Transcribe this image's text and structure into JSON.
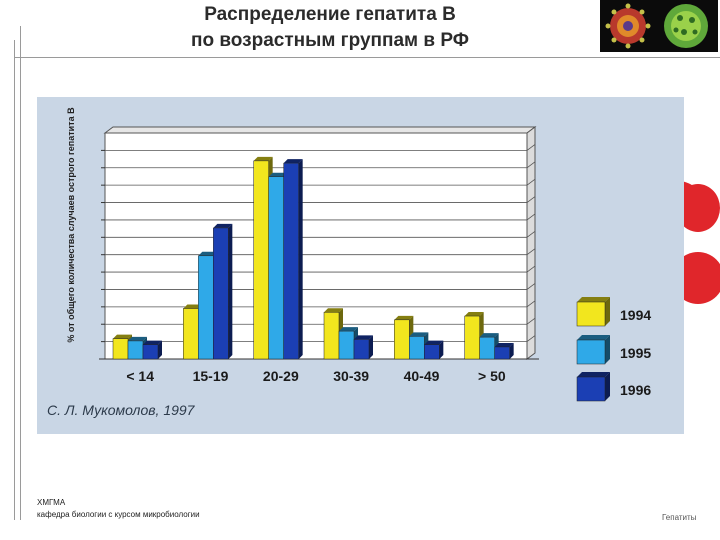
{
  "slide": {
    "title_line1": "Распределение гепатита В",
    "title_line2": "по возрастным группам в РФ",
    "logo_icon": "virus-icon",
    "footer_org": "ХМГМА",
    "footer_dept": "кафедра биологии с курсом микробиологии",
    "footer_topic": "Гепатиты",
    "credit": "С. Л. Мукомолов, 1997"
  },
  "colors": {
    "1994": "#f2e61e",
    "1995": "#2fa9e8",
    "1996": "#1b3fb4",
    "figure_bg": "#c9d6e5",
    "blood_cells": "#e0262b"
  },
  "chart_data": {
    "type": "bar",
    "ylabel": "% от общего количества случаев острого гепатита В",
    "xlabel": "",
    "categories": [
      "< 14",
      "15-19",
      "20-29",
      "30-39",
      "40-49",
      "> 50"
    ],
    "series": [
      {
        "name": "1994",
        "values": [
          2.7,
          6.7,
          26.3,
          6.2,
          5.2,
          5.7
        ]
      },
      {
        "name": "1995",
        "values": [
          2.4,
          13.7,
          24.2,
          3.7,
          3.0,
          2.9
        ]
      },
      {
        "name": "1996",
        "values": [
          1.9,
          17.4,
          26.0,
          2.6,
          1.9,
          1.6
        ]
      }
    ],
    "ylim": [
      0,
      30
    ],
    "gridlines": 13,
    "grid": true,
    "legend": "right"
  }
}
